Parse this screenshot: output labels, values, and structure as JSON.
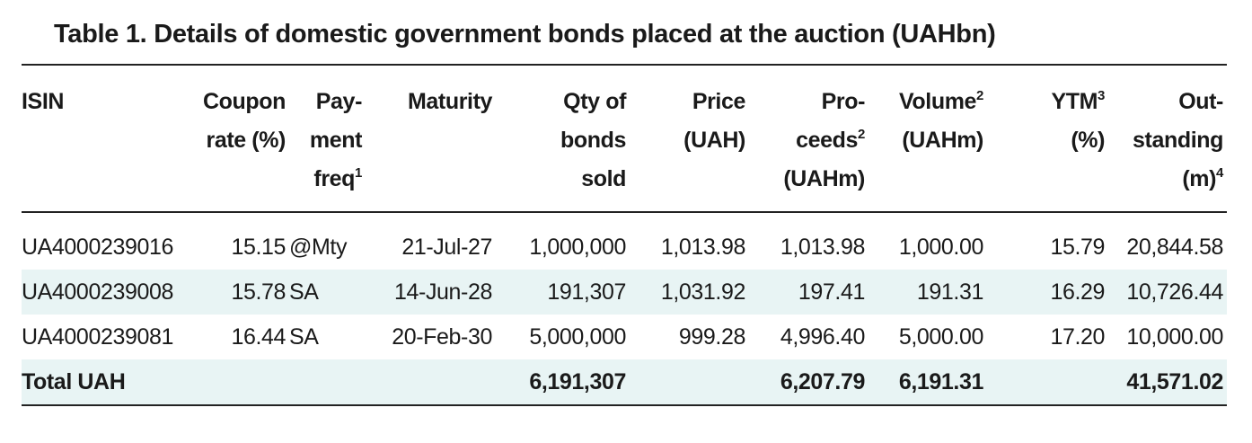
{
  "title": "Table 1. Details of domestic government bonds placed at the auction (UAHbn)",
  "headers": {
    "isin": "ISIN",
    "coupon_l1": "Coupon",
    "coupon_l2": "rate (%)",
    "freq_l1": "Pay-",
    "freq_l2": "ment",
    "freq_l3": "freq",
    "freq_sup": "1",
    "maturity": "Maturity",
    "qty_l1": "Qty of",
    "qty_l2": "bonds",
    "qty_l3": "sold",
    "price_l1": "Price",
    "price_l2": "(UAH)",
    "proceeds_l1": "Pro-",
    "proceeds_l2": "ceeds",
    "proceeds_sup": "2",
    "proceeds_l3": "(UAHm)",
    "volume_l1": "Volume",
    "volume_sup": "2",
    "volume_l2": "(UAHm)",
    "ytm_l1": "YTM",
    "ytm_sup": "3",
    "ytm_l2": "(%)",
    "out_l1": "Out-",
    "out_l2": "standing",
    "out_l3": "(m)",
    "out_sup": "4"
  },
  "rows": [
    {
      "isin": "UA4000239016",
      "coupon": "15.15",
      "freq": "@Mty",
      "maturity": "21-Jul-27",
      "qty": "1,000,000",
      "price": "1,013.98",
      "proceeds": "1,013.98",
      "volume": "1,000.00",
      "ytm": "15.79",
      "outstanding": "20,844.58"
    },
    {
      "isin": "UA4000239008",
      "coupon": "15.78",
      "freq": "SA",
      "maturity": "14-Jun-28",
      "qty": "191,307",
      "price": "1,031.92",
      "proceeds": "197.41",
      "volume": "191.31",
      "ytm": "16.29",
      "outstanding": "10,726.44"
    },
    {
      "isin": "UA4000239081",
      "coupon": "16.44",
      "freq": "SA",
      "maturity": "20-Feb-30",
      "qty": "5,000,000",
      "price": "999.28",
      "proceeds": "4,996.40",
      "volume": "5,000.00",
      "ytm": "17.20",
      "outstanding": "10,000.00"
    }
  ],
  "total": {
    "label": "Total UAH",
    "qty": "6,191,307",
    "proceeds": "6,207.79",
    "volume": "6,191.31",
    "outstanding": "41,571.02"
  },
  "colors": {
    "shade": "#e8f4f4",
    "rule": "#222222"
  }
}
